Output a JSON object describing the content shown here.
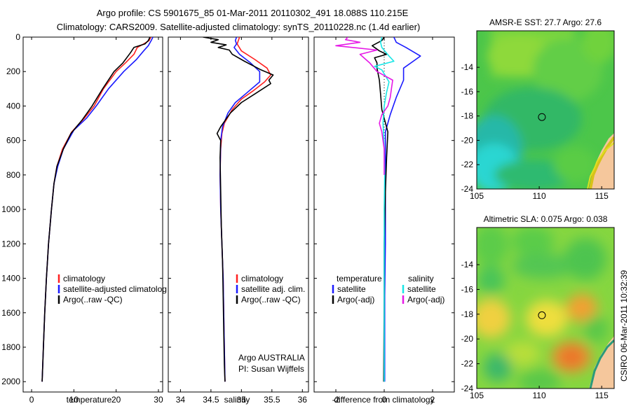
{
  "header": {
    "title_line1": "Argo profile: CS 5901675_85 01-Mar-2011 20110302_491 18.088S 110.215E",
    "title_line2": "Climatology: CARS2009. Satellite-adjusted climatology: synTS_20110228.nc (1.4d earlier)"
  },
  "footer": {
    "stamp": "CSIRO 06-Mar-2011 10:32:39"
  },
  "colors": {
    "climatology": "#ff2020",
    "satellite": "#1a1aff",
    "argo": "#000000",
    "sat_salinity": "#19e6e6",
    "argo_salinity": "#e619e6"
  },
  "chart_data": [
    {
      "type": "line",
      "id": "temperature",
      "xlabel": "temperature",
      "ylabel": "",
      "xlim": [
        -2,
        31
      ],
      "ylim": [
        2060,
        0
      ],
      "xticks": [
        0,
        10,
        20,
        30
      ],
      "yticks": [
        0,
        200,
        400,
        600,
        800,
        1000,
        1200,
        1400,
        1600,
        1800,
        2000
      ],
      "legend": [
        "climatology",
        "satellite-adjusted climatolog",
        "Argo(..raw -QC)"
      ],
      "series": [
        {
          "name": "climatology",
          "color": "#ff2020",
          "points": [
            [
              28.2,
              0
            ],
            [
              27.8,
              20
            ],
            [
              26.5,
              40
            ],
            [
              25.0,
              60
            ],
            [
              24.2,
              100
            ],
            [
              22.2,
              150
            ],
            [
              20.0,
              200
            ],
            [
              17.0,
              300
            ],
            [
              14.8,
              400
            ],
            [
              12.5,
              470
            ],
            [
              9.5,
              550
            ],
            [
              7.3,
              650
            ],
            [
              6.0,
              750
            ],
            [
              5.3,
              850
            ],
            [
              4.7,
              1000
            ],
            [
              4.0,
              1200
            ],
            [
              3.5,
              1400
            ],
            [
              3.1,
              1600
            ],
            [
              2.8,
              1800
            ],
            [
              2.5,
              2000
            ]
          ]
        },
        {
          "name": "satellite-adjusted climatology",
          "color": "#1a1aff",
          "points": [
            [
              28.7,
              0
            ],
            [
              28.3,
              20
            ],
            [
              27.6,
              50
            ],
            [
              26.5,
              80
            ],
            [
              24.8,
              130
            ],
            [
              21.8,
              200
            ],
            [
              18.2,
              300
            ],
            [
              15.3,
              400
            ],
            [
              13.0,
              470
            ],
            [
              10.0,
              540
            ],
            [
              7.5,
              650
            ],
            [
              6.2,
              750
            ],
            [
              5.3,
              850
            ],
            [
              4.7,
              1000
            ],
            [
              4.0,
              1200
            ],
            [
              3.5,
              1400
            ],
            [
              3.1,
              1600
            ],
            [
              2.8,
              1800
            ],
            [
              2.5,
              2000
            ]
          ]
        },
        {
          "name": "Argo(..raw -QC)",
          "color": "#000000",
          "points": [
            [
              28.0,
              0
            ],
            [
              27.6,
              20
            ],
            [
              26.8,
              40
            ],
            [
              24.2,
              60
            ],
            [
              23.4,
              90
            ],
            [
              21.6,
              150
            ],
            [
              19.5,
              200
            ],
            [
              16.8,
              300
            ],
            [
              14.3,
              400
            ],
            [
              12.0,
              480
            ],
            [
              9.3,
              560
            ],
            [
              7.5,
              650
            ],
            [
              6.0,
              750
            ],
            [
              5.3,
              850
            ],
            [
              4.7,
              1000
            ],
            [
              4.0,
              1200
            ],
            [
              3.5,
              1400
            ],
            [
              3.1,
              1600
            ],
            [
              2.8,
              1800
            ],
            [
              2.5,
              2000
            ]
          ]
        }
      ]
    },
    {
      "type": "line",
      "id": "salinity",
      "xlabel": "salinity",
      "xlim": [
        33.8,
        36.1
      ],
      "ylim": [
        2060,
        0
      ],
      "xticks": [
        34,
        34.5,
        35,
        35.5,
        36
      ],
      "legend": [
        "climatology",
        "satellite adj. clim.",
        "Argo(..raw -QC)"
      ],
      "annotation": [
        "Argo AUSTRALIA",
        "PI: Susan Wijffels"
      ],
      "series": [
        {
          "name": "climatology",
          "color": "#ff2020",
          "points": [
            [
              34.97,
              0
            ],
            [
              34.93,
              40
            ],
            [
              35.0,
              80
            ],
            [
              35.22,
              130
            ],
            [
              35.42,
              180
            ],
            [
              35.48,
              220
            ],
            [
              35.38,
              260
            ],
            [
              35.2,
              310
            ],
            [
              35.0,
              360
            ],
            [
              34.85,
              420
            ],
            [
              34.72,
              500
            ],
            [
              34.68,
              560
            ],
            [
              34.66,
              650
            ],
            [
              34.65,
              800
            ],
            [
              34.66,
              1000
            ],
            [
              34.68,
              1200
            ],
            [
              34.7,
              1400
            ],
            [
              34.71,
              1600
            ],
            [
              34.72,
              1800
            ],
            [
              34.73,
              2000
            ]
          ]
        },
        {
          "name": "satellite adj. clim.",
          "color": "#1a1aff",
          "points": [
            [
              34.92,
              0
            ],
            [
              34.9,
              20
            ],
            [
              34.92,
              40
            ],
            [
              34.88,
              60
            ],
            [
              34.97,
              100
            ],
            [
              35.15,
              150
            ],
            [
              35.3,
              200
            ],
            [
              35.3,
              260
            ],
            [
              35.1,
              320
            ],
            [
              34.9,
              380
            ],
            [
              34.78,
              440
            ],
            [
              34.69,
              520
            ],
            [
              34.66,
              600
            ],
            [
              34.65,
              800
            ],
            [
              34.66,
              1000
            ],
            [
              34.68,
              1200
            ],
            [
              34.7,
              1400
            ],
            [
              34.71,
              1600
            ],
            [
              34.72,
              1800
            ],
            [
              34.73,
              2000
            ]
          ]
        },
        {
          "name": "Argo(..raw -QC)",
          "color": "#000000",
          "points": [
            [
              34.37,
              0
            ],
            [
              34.62,
              15
            ],
            [
              34.5,
              30
            ],
            [
              34.75,
              45
            ],
            [
              34.62,
              60
            ],
            [
              34.8,
              75
            ],
            [
              34.85,
              100
            ],
            [
              35.05,
              140
            ],
            [
              35.32,
              190
            ],
            [
              35.52,
              220
            ],
            [
              35.45,
              250
            ],
            [
              35.48,
              270
            ],
            [
              35.22,
              330
            ],
            [
              35.0,
              380
            ],
            [
              34.82,
              440
            ],
            [
              34.66,
              520
            ],
            [
              34.6,
              560
            ],
            [
              34.66,
              600
            ],
            [
              34.65,
              700
            ],
            [
              34.66,
              900
            ],
            [
              34.67,
              1100
            ],
            [
              34.69,
              1300
            ],
            [
              34.7,
              1500
            ],
            [
              34.71,
              1700
            ],
            [
              34.72,
              1900
            ],
            [
              34.73,
              2000
            ]
          ]
        }
      ]
    },
    {
      "type": "line",
      "id": "difference",
      "xlabel": "difference from climatology",
      "xlim": [
        -2.9,
        2.9
      ],
      "ylim": [
        2060,
        0
      ],
      "xticks": [
        -2,
        0,
        2
      ],
      "legend_temperature_title": "temperature",
      "legend_temperature": [
        "satellite",
        "Argo(-adj)"
      ],
      "legend_salinity_title": "salinity",
      "legend_salinity": [
        "satellite",
        "Argo(-adj)"
      ],
      "series": [
        {
          "name": "temperature satellite",
          "color": "#1a1aff",
          "points": [
            [
              0.4,
              0
            ],
            [
              0.5,
              30
            ],
            [
              0.9,
              60
            ],
            [
              1.5,
              110
            ],
            [
              1.2,
              140
            ],
            [
              0.8,
              180
            ],
            [
              0.8,
              250
            ],
            [
              0.5,
              350
            ],
            [
              0.25,
              450
            ],
            [
              0.05,
              550
            ],
            [
              0.05,
              700
            ],
            [
              0.05,
              900
            ],
            [
              0.05,
              1200
            ],
            [
              0.02,
              1500
            ],
            [
              0.02,
              2000
            ]
          ]
        },
        {
          "name": "temperature Argo(-adj)",
          "color": "#000000",
          "points": [
            [
              0.0,
              0
            ],
            [
              -0.1,
              20
            ],
            [
              -0.5,
              50
            ],
            [
              -0.2,
              80
            ],
            [
              0.1,
              100
            ],
            [
              -0.4,
              120
            ],
            [
              -0.3,
              150
            ],
            [
              -0.3,
              180
            ],
            [
              -0.2,
              250
            ],
            [
              -0.15,
              330
            ],
            [
              -0.1,
              420
            ],
            [
              0.15,
              550
            ],
            [
              0.1,
              700
            ],
            [
              0.05,
              900
            ],
            [
              0.0,
              1200
            ],
            [
              0.0,
              1500
            ],
            [
              -0.02,
              2000
            ]
          ]
        },
        {
          "name": "salinity satellite",
          "color": "#19e6e6",
          "points": [
            [
              -0.1,
              0
            ],
            [
              -0.15,
              30
            ],
            [
              -0.1,
              60
            ],
            [
              0.2,
              110
            ],
            [
              0.4,
              140
            ],
            [
              -0.4,
              170
            ],
            [
              -0.1,
              190
            ],
            [
              0.2,
              260
            ],
            [
              0.1,
              320
            ],
            [
              0.0,
              400
            ],
            [
              -0.05,
              500
            ],
            [
              0.0,
              650
            ],
            [
              0.02,
              800
            ],
            [
              0.0,
              1000
            ],
            [
              0.0,
              1500
            ],
            [
              0.0,
              2000
            ]
          ]
        },
        {
          "name": "salinity Argo(-adj)",
          "color": "#e619e6",
          "points": [
            [
              -1.5,
              0
            ],
            [
              -1.6,
              15
            ],
            [
              -1.0,
              30
            ],
            [
              -2.0,
              50
            ],
            [
              -0.3,
              75
            ],
            [
              -1.0,
              100
            ],
            [
              -0.6,
              150
            ],
            [
              -0.3,
              200
            ],
            [
              0.35,
              250
            ],
            [
              0.3,
              300
            ],
            [
              0.25,
              350
            ],
            [
              0.15,
              400
            ],
            [
              -0.1,
              450
            ],
            [
              -0.2,
              500
            ],
            [
              -0.1,
              550
            ],
            [
              0.0,
              650
            ],
            [
              0.0,
              800
            ]
          ]
        }
      ]
    },
    {
      "type": "heatmap",
      "id": "sst-map",
      "title": "AMSR-E SST: 27.7 Argo: 27.6",
      "xlim": [
        105,
        116
      ],
      "ylim": [
        -24,
        -11
      ],
      "xticks": [
        105,
        110,
        115
      ],
      "yticks": [
        -24,
        -22,
        -20,
        -18,
        -16,
        -14
      ],
      "marker": {
        "lon": 110.215,
        "lat": -18.088
      },
      "land_color": "#f5c79c"
    },
    {
      "type": "heatmap",
      "id": "sla-map",
      "title": "Altimetric SLA: 0.075 Argo: 0.038",
      "xlim": [
        105,
        116
      ],
      "ylim": [
        -24,
        -11
      ],
      "xticks": [
        105,
        110,
        115
      ],
      "yticks": [
        -24,
        -22,
        -20,
        -18,
        -16,
        -14
      ],
      "marker": {
        "lon": 110.215,
        "lat": -18.088
      },
      "land_color": "#f5c79c"
    }
  ]
}
